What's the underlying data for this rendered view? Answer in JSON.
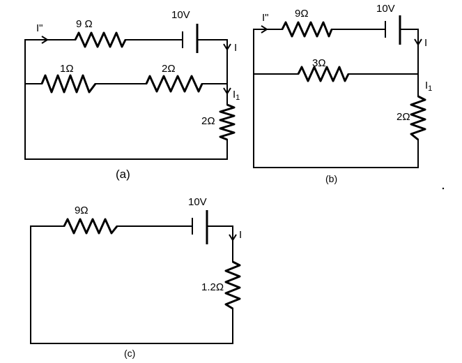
{
  "circuits": {
    "a": {
      "caption": "(a)",
      "r_series": "9 Ω",
      "battery": "10V",
      "r_left": "1Ω",
      "r_mid": "2Ω",
      "r_right": "2Ω",
      "current_in": "I\"",
      "current_main": "I",
      "current_branch": "I",
      "current_branch_sub": "1"
    },
    "b": {
      "caption": "(b)",
      "r_series": "9Ω",
      "battery": "10V",
      "r_parallel": "3Ω",
      "r_right": "2Ω",
      "current_in": "I\"",
      "current_main": "I",
      "current_branch": "I",
      "current_branch_sub": "1"
    },
    "c": {
      "caption": "(c)",
      "r_series": "9Ω",
      "battery": "10V",
      "r_right": "1.2Ω",
      "current_main": "I"
    }
  }
}
